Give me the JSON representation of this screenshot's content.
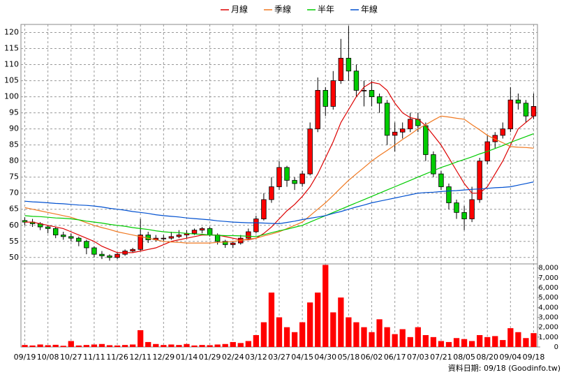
{
  "chart_data": {
    "type": "candlestick",
    "up_color": "#ff0000",
    "down_color": "#00cc00",
    "volume_color": "#ff0000",
    "grid": true,
    "legend": "top",
    "footer": "資料日期: 09/18 (Goodinfo.tw)",
    "categories": [
      "09/19",
      null,
      null,
      "10/08",
      null,
      null,
      "10/27",
      null,
      null,
      "11/11",
      null,
      null,
      "11/26",
      null,
      null,
      "12/11",
      null,
      null,
      "12/29",
      null,
      null,
      "01/14",
      null,
      null,
      "01/29",
      null,
      null,
      "02/24",
      null,
      null,
      "03/12",
      null,
      null,
      "03/27",
      null,
      null,
      "04/15",
      null,
      null,
      "04/30",
      null,
      null,
      "05/18",
      null,
      null,
      "06/02",
      null,
      null,
      "06/17",
      null,
      null,
      "07/03",
      null,
      null,
      "07/21",
      null,
      null,
      "08/05",
      null,
      null,
      "08/20",
      null,
      null,
      "09/04",
      null,
      null,
      "09/18"
    ],
    "open": [
      61.5,
      61,
      60.5,
      59.5,
      59,
      57,
      56.5,
      56,
      55,
      53,
      51,
      50.5,
      50,
      51,
      52,
      52.5,
      57,
      55.5,
      56,
      56,
      56.5,
      57,
      57.5,
      58.5,
      59,
      57,
      55,
      54,
      54.5,
      56,
      58,
      62,
      68,
      72,
      78,
      74,
      73,
      76,
      90,
      102,
      97,
      105,
      112,
      108,
      102,
      102,
      100,
      98,
      88,
      89,
      90,
      93,
      91,
      82,
      76,
      72,
      67,
      64,
      62,
      68,
      80,
      86,
      88,
      90,
      99,
      98,
      94
    ],
    "high": [
      62.5,
      62,
      61,
      60,
      59.5,
      58,
      57.5,
      56.5,
      55.5,
      53.5,
      52,
      51,
      51.5,
      52.5,
      53,
      62,
      58,
      57,
      57,
      58,
      58.5,
      58.5,
      59,
      59.5,
      59.5,
      57.5,
      55.5,
      55,
      57,
      59,
      63,
      70,
      75,
      80,
      78.5,
      75,
      77,
      92,
      106,
      103,
      108,
      118,
      122,
      110,
      105,
      105,
      101,
      99,
      92,
      92,
      95,
      95,
      92,
      83,
      77,
      73,
      68,
      66,
      72,
      81,
      88,
      89,
      92,
      103,
      101,
      99,
      101
    ],
    "low": [
      60,
      59.5,
      58.5,
      57.5,
      56,
      55.5,
      55,
      53.5,
      51,
      50,
      49.5,
      49,
      49.5,
      50.5,
      51.5,
      52,
      54.5,
      55,
      55,
      55.5,
      56,
      56,
      57,
      57.5,
      56.5,
      54,
      53,
      53,
      54,
      55.5,
      57.5,
      61.5,
      67,
      71,
      72,
      71,
      72,
      75.5,
      89,
      94,
      96,
      104,
      105,
      100,
      97,
      97,
      95,
      85,
      83,
      87,
      89,
      89,
      80,
      75,
      71,
      65,
      62,
      58.5,
      61,
      67,
      79,
      84,
      87,
      89,
      96,
      92,
      93
    ],
    "close": [
      61,
      60.5,
      59.5,
      59,
      57,
      56.5,
      56,
      55,
      53,
      51,
      50.5,
      50,
      51,
      52,
      52.5,
      57,
      55.5,
      56,
      56,
      56.5,
      57,
      57.5,
      58.5,
      59,
      57,
      55,
      54,
      54.5,
      56,
      58,
      62,
      68,
      72,
      78,
      74,
      73,
      76,
      90,
      102,
      97,
      105,
      112,
      108,
      102,
      102,
      100,
      98,
      88,
      89,
      90,
      93,
      91,
      82,
      76,
      72,
      67,
      64,
      62,
      68,
      80,
      86,
      88,
      90,
      99,
      98,
      94,
      97
    ],
    "volume": [
      200,
      150,
      250,
      180,
      220,
      120,
      600,
      150,
      200,
      250,
      300,
      180,
      150,
      200,
      250,
      1700,
      500,
      300,
      200,
      250,
      200,
      300,
      150,
      200,
      180,
      250,
      300,
      500,
      400,
      600,
      1200,
      2500,
      5500,
      3000,
      2000,
      1500,
      2500,
      4500,
      5500,
      8300,
      3500,
      5000,
      3000,
      2500,
      2000,
      1500,
      2800,
      2000,
      1300,
      1800,
      1000,
      2000,
      1200,
      1000,
      600,
      500,
      900,
      800,
      600,
      1200,
      1000,
      1100,
      700,
      1900,
      1500,
      900,
      1400
    ],
    "series": [
      {
        "name": "月線",
        "color": "#dd0000",
        "values": [
          61,
          61,
          60.5,
          60,
          59.5,
          59,
          58,
          57,
          56,
          55,
          53.5,
          52.5,
          51.5,
          51.5,
          51.5,
          52,
          52.5,
          53,
          54,
          55,
          55.5,
          56,
          56.5,
          57,
          57,
          57,
          56.5,
          56,
          55.5,
          55.5,
          56,
          57.5,
          59.5,
          62,
          64.5,
          66.5,
          69,
          72,
          76,
          81,
          86,
          92,
          96,
          100,
          103,
          104.5,
          104,
          102,
          98,
          95,
          93.5,
          93,
          91,
          88,
          85,
          81,
          77,
          73,
          70,
          70,
          72,
          76,
          80,
          85,
          90,
          92,
          94
        ]
      },
      {
        "name": "季線",
        "color": "#f07820",
        "values": [
          65.5,
          65,
          64.5,
          64,
          63.5,
          63,
          62.5,
          61.7,
          60.8,
          60,
          59.3,
          58.7,
          58,
          57.5,
          57,
          56.5,
          56,
          55.5,
          55,
          54.8,
          54.7,
          54.5,
          54.5,
          54.5,
          54.5,
          54.7,
          54.8,
          55,
          55.3,
          55.7,
          56,
          56.7,
          57.3,
          58,
          59,
          60,
          61,
          63,
          65,
          67,
          69.3,
          71.7,
          74,
          76,
          78,
          80,
          81.7,
          83.3,
          85,
          86.7,
          88.3,
          90,
          91.3,
          92.7,
          94,
          93.7,
          93.3,
          93,
          91.3,
          89.7,
          88,
          86.8,
          85.7,
          84.5,
          84.3,
          84.2,
          84
        ]
      },
      {
        "name": "半年",
        "color": "#00cc00",
        "values": [
          63,
          62.8,
          62.7,
          62.5,
          62.3,
          62.2,
          62,
          61.7,
          61.3,
          61,
          60.7,
          60.3,
          60,
          59.7,
          59.3,
          59,
          58.7,
          58.3,
          58,
          57.8,
          57.7,
          57.5,
          57.3,
          57.2,
          57,
          56.9,
          56.8,
          56.8,
          56.7,
          56.6,
          56.5,
          57.1,
          57.7,
          58.3,
          58.8,
          59.4,
          60,
          61,
          62,
          63,
          64,
          65,
          66,
          67,
          68,
          69,
          70,
          71,
          72,
          73,
          74,
          75,
          76,
          77,
          78,
          78.8,
          79.7,
          80.5,
          81.3,
          82.2,
          83,
          83.9,
          84.8,
          85.8,
          86.7,
          87.6,
          88.5
        ]
      },
      {
        "name": "年線",
        "color": "#0050d0",
        "values": [
          67.5,
          67.3,
          67.2,
          67,
          66.8,
          66.7,
          66.5,
          66.3,
          66.2,
          66,
          65.7,
          65.3,
          65,
          64.7,
          64.3,
          64,
          63.7,
          63.3,
          63,
          62.8,
          62.6,
          62.3,
          62.1,
          61.9,
          61.7,
          61.4,
          61.2,
          61,
          60.9,
          60.8,
          60.8,
          60.7,
          60.6,
          60.5,
          60.9,
          61.3,
          61.8,
          62.2,
          62.6,
          63,
          63.7,
          64.3,
          65,
          65.7,
          66.3,
          67,
          67.5,
          68,
          68.5,
          69,
          69.5,
          70,
          70.2,
          70.3,
          70.5,
          70.7,
          70.8,
          71,
          71.2,
          71.3,
          71.5,
          71.7,
          71.8,
          72,
          72.5,
          73,
          73.5
        ]
      }
    ],
    "ylim": [
      48,
      122.5
    ],
    "yticks": [
      50,
      55,
      60,
      65,
      70,
      75,
      80,
      85,
      90,
      95,
      100,
      105,
      110,
      115,
      120
    ],
    "volume_lim": [
      0,
      8400
    ],
    "volume_ticks": [
      0,
      {
        "value": 1000,
        "label": "1,000"
      },
      {
        "value": 2000,
        "label": "2,000"
      },
      {
        "value": 3000,
        "label": "3,000"
      },
      {
        "value": 4000,
        "label": "4,000"
      },
      {
        "value": 5000,
        "label": "5,000"
      },
      {
        "value": 6000,
        "label": "6,000"
      },
      {
        "value": 7000,
        "label": "7,000"
      },
      {
        "value": 8000,
        "label": "8,000"
      }
    ]
  }
}
